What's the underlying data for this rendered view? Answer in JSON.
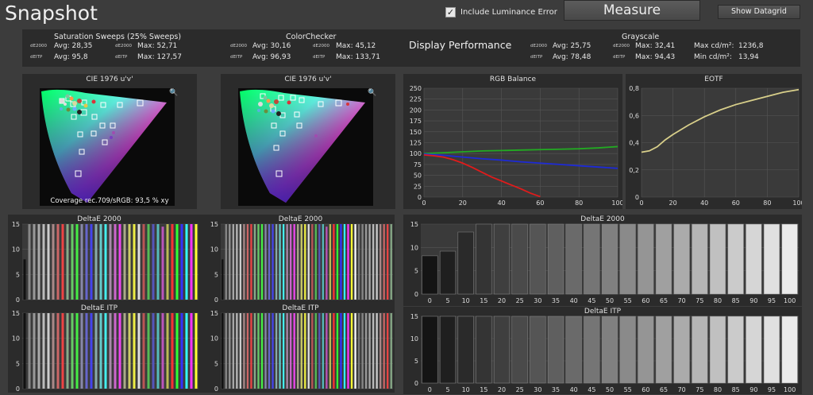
{
  "app": {
    "title": "Snapshot"
  },
  "toolbar": {
    "include_luminance_label": "Include Luminance Error",
    "include_luminance_checked": true,
    "measure_label": "Measure",
    "show_datagrid_label": "Show Datagrid"
  },
  "summary": {
    "saturation": {
      "title": "Saturation Sweeps (25% Sweeps)",
      "de2000_tag": "dE2000",
      "deitp_tag": "dEITP",
      "de2000_avg": "Avg: 28,35",
      "de2000_max": "Max: 52,71",
      "deitp_avg": "Avg: 95,8",
      "deitp_max": "Max: 127,57"
    },
    "colorchecker": {
      "title": "ColorChecker",
      "de2000_tag": "dE2000",
      "deitp_tag": "dEITP",
      "de2000_avg": "Avg: 30,16",
      "de2000_max": "Max: 45,12",
      "deitp_avg": "Avg: 96,93",
      "deitp_max": "Max: 133,71"
    },
    "display_performance": "Display Performance",
    "grayscale": {
      "title": "Grayscale",
      "de2000_tag": "dE2000",
      "deitp_tag": "dEITP",
      "de2000_avg": "Avg: 25,75",
      "de2000_max": "Max: 32,41",
      "deitp_avg": "Avg: 78,48",
      "deitp_max": "Max: 94,43",
      "max_cd_label": "Max cd/m²:",
      "max_cd_value": "1236,8",
      "min_cd_label": "Min cd/m²:",
      "min_cd_value": "13,94"
    }
  },
  "cie": {
    "left_title": "CIE 1976 u'v'",
    "right_title": "CIE 1976 u'v'",
    "coverage_text": "Coverage rec.709/sRGB:  93,5 % xy"
  },
  "chart_data": [
    {
      "type": "line",
      "title": "RGB Balance",
      "xlim": [
        0,
        100
      ],
      "ylim": [
        0,
        250
      ],
      "xticks": [
        0,
        20,
        40,
        60,
        80,
        100
      ],
      "yticks": [
        0,
        25,
        50,
        75,
        100,
        125,
        150,
        175,
        200,
        225,
        250
      ],
      "grid": true,
      "series": [
        {
          "color": "#22aa22",
          "x": [
            0,
            10,
            20,
            30,
            40,
            50,
            60,
            70,
            80,
            90,
            100
          ],
          "values": [
            100,
            102,
            104,
            106,
            107,
            108,
            109,
            110,
            111,
            113,
            116
          ]
        },
        {
          "color": "#1d2ad6",
          "x": [
            0,
            10,
            20,
            30,
            40,
            50,
            60,
            70,
            80,
            90,
            100
          ],
          "values": [
            99,
            96,
            92,
            88,
            85,
            81,
            78,
            75,
            72,
            69,
            66
          ]
        },
        {
          "color": "#e01b1b",
          "x": [
            0,
            5,
            10,
            15,
            20,
            25,
            30,
            35,
            40,
            45,
            50,
            55,
            60
          ],
          "values": [
            97,
            95,
            92,
            86,
            78,
            68,
            57,
            46,
            37,
            28,
            19,
            9,
            1
          ]
        }
      ]
    },
    {
      "type": "line",
      "title": "EOTF",
      "xlim": [
        0,
        100
      ],
      "ylim": [
        0,
        0.8
      ],
      "xticks": [
        0,
        20,
        40,
        60,
        80,
        100
      ],
      "yticks": [
        0,
        0.2,
        0.4,
        0.6,
        0.8
      ],
      "ytick_labels": [
        "0",
        "0,2",
        "0,4",
        "0,6",
        "0,8"
      ],
      "grid": true,
      "series": [
        {
          "color": "#d8cf8a",
          "x": [
            0,
            5,
            10,
            15,
            20,
            30,
            40,
            50,
            60,
            70,
            80,
            90,
            100
          ],
          "values": [
            0.33,
            0.34,
            0.37,
            0.42,
            0.46,
            0.53,
            0.59,
            0.64,
            0.68,
            0.71,
            0.74,
            0.77,
            0.79
          ]
        }
      ]
    },
    {
      "type": "bar",
      "title": "DeltaE 2000",
      "ylim": [
        0,
        15
      ],
      "yticks": [
        0,
        5,
        10,
        15
      ],
      "categories": [
        "0",
        "5",
        "10",
        "15",
        "20",
        "25",
        "30",
        "35",
        "40",
        "45",
        "50",
        "55",
        "60",
        "65",
        "70",
        "75",
        "80",
        "85",
        "90",
        "95",
        "100"
      ],
      "values": [
        8.2,
        9.2,
        13.3,
        15,
        15,
        15,
        15,
        15,
        15,
        15,
        15,
        15,
        15,
        15,
        15,
        15,
        15,
        15,
        15,
        15,
        15
      ]
    },
    {
      "type": "bar",
      "title": "DeltaE ITP",
      "ylim": [
        0,
        15
      ],
      "yticks": [
        0,
        5,
        10,
        15
      ],
      "categories": [
        "0",
        "5",
        "10",
        "15",
        "20",
        "25",
        "30",
        "35",
        "40",
        "45",
        "50",
        "55",
        "60",
        "65",
        "70",
        "75",
        "80",
        "85",
        "90",
        "95",
        "100"
      ],
      "values": [
        15,
        15,
        15,
        15,
        15,
        15,
        15,
        15,
        15,
        15,
        15,
        15,
        15,
        15,
        15,
        15,
        15,
        15,
        15,
        15,
        15
      ]
    },
    {
      "type": "bar",
      "title": "DeltaE 2000",
      "ylim": [
        0,
        15
      ],
      "yticks": [
        0,
        5,
        10,
        15
      ],
      "values": [
        8.0,
        15,
        15,
        15,
        15,
        15,
        15,
        15,
        15,
        15,
        15,
        15,
        15,
        15,
        15,
        15,
        15,
        15,
        15,
        15,
        15,
        15,
        15,
        15,
        15,
        15,
        15,
        15,
        15,
        14.5,
        15,
        15,
        15,
        15,
        15,
        15,
        15
      ]
    },
    {
      "type": "bar",
      "title": "DeltaE ITP",
      "ylim": [
        0,
        15
      ],
      "yticks": [
        0,
        5,
        10,
        15
      ],
      "values": [
        15,
        15,
        15,
        15,
        15,
        15,
        15,
        15,
        15,
        15,
        15,
        15,
        15,
        15,
        15,
        15,
        15,
        15,
        15,
        15,
        15,
        15,
        15,
        15,
        15,
        15,
        15,
        15,
        15,
        15,
        15,
        15,
        15,
        15,
        15,
        15,
        15
      ]
    },
    {
      "type": "bar",
      "title": "DeltaE 2000",
      "ylim": [
        0,
        15
      ],
      "yticks": [
        0,
        5,
        10,
        15
      ],
      "values": [
        8.0,
        15,
        15,
        15,
        15,
        15,
        15,
        15,
        15,
        15,
        15,
        15,
        15,
        15,
        15,
        15,
        15,
        15,
        15,
        15,
        15,
        15,
        15,
        15,
        15,
        15,
        15,
        15,
        15,
        14.5,
        15,
        15,
        15,
        15,
        15,
        15,
        15,
        15,
        15,
        15,
        15,
        15,
        15,
        15,
        15,
        15,
        15,
        15
      ]
    },
    {
      "type": "bar",
      "title": "DeltaE ITP",
      "ylim": [
        0,
        15
      ],
      "yticks": [
        0,
        5,
        10,
        15
      ],
      "values": [
        15,
        15,
        15,
        15,
        15,
        15,
        15,
        15,
        15,
        15,
        15,
        15,
        15,
        15,
        15,
        15,
        15,
        15,
        15,
        15,
        15,
        15,
        15,
        15,
        15,
        15,
        15,
        15,
        15,
        15,
        15,
        15,
        15,
        15,
        15,
        15,
        15,
        15,
        15,
        15,
        15,
        15,
        15,
        15,
        15,
        15,
        15,
        15
      ]
    }
  ]
}
